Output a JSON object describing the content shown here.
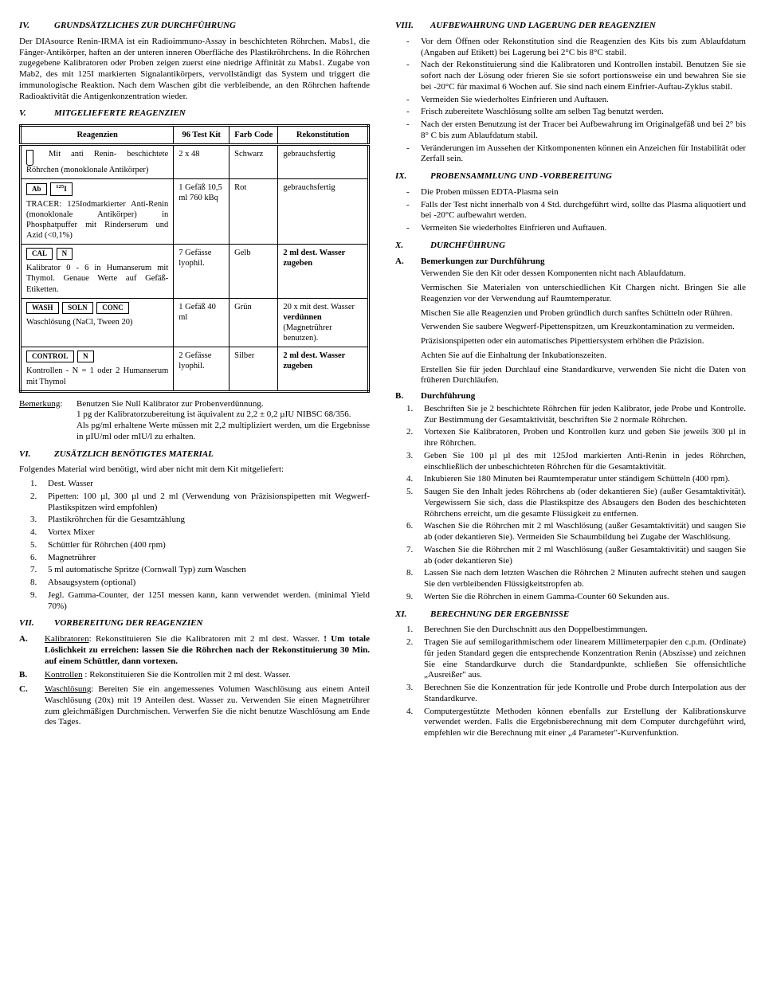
{
  "left": {
    "s4": {
      "num": "IV.",
      "title": "GRUNDSÄTZLICHES ZUR DURCHFÜHRUNG",
      "body": "Der DIAsource Renin-IRMA ist ein Radioimmuno-Assay in beschichteten Röhrchen. Mabs1, die Fänger-Antikörper, haften an der unteren inneren Oberfläche des Plastikröhrchens. In die Röhrchen zugegebene Kalibratoren oder Proben zeigen zuerst eine niedrige Affinität zu Mabs1. Zugabe von Mab2, des mit 125I markierten Signalantikörpers, vervollständigt das System und triggert die immunologische Reaktion. Nach dem Waschen gibt die verbleibende, an den Röhrchen haftende Radioaktivität die Antigenkonzentration wieder."
    },
    "s5": {
      "num": "V.",
      "title": "MITGELIEFERTE REAGENZIEN"
    },
    "table": {
      "h1": "Reagenzien",
      "h2": "96 Test Kit",
      "h3": "Farb Code",
      "h4": "Rekonstitution",
      "r1": {
        "desc": "Mit anti Renin- beschichtete Röhrchen (monoklonale Antikörper)",
        "kit": "2 x 48",
        "color": "Schwarz",
        "recon": "gebrauchsfertig"
      },
      "r2": {
        "tag1": "Ab",
        "tag2": "125I",
        "desc": "TRACER: 125Iodmarkierter Anti-Renin (monoklonale Antikörper) in Phosphatpuffer mit Rinderserum und Azid (<0,1%)",
        "kit": "1 Gefäß 10,5 ml 760 kBq",
        "color": "Rot",
        "recon": "gebrauchsfertig"
      },
      "r3": {
        "tag1": "CAL",
        "tag2": "N",
        "desc": "Kalibrator 0 - 6 in Humanserum mit Thymol. Genaue Werte auf Gefäß-Etiketten.",
        "kit": "7 Gefässe lyophil.",
        "color": "Gelb",
        "recon": "2 ml dest. Wasser zugeben"
      },
      "r4": {
        "tag1": "WASH",
        "tag2": "SOLN",
        "tag3": "CONC",
        "desc": "Waschlösung (NaCl, Tween 20)",
        "kit": "1 Gefäß 40 ml",
        "color": "Grün",
        "recon": "20 x mit dest. Wasser verdünnen (Magnetrührer benutzen)."
      },
      "r5": {
        "tag1": "CONTROL",
        "tag2": "N",
        "desc": "Kontrollen - N = 1 oder 2 Humanserum mit Thymol",
        "kit": "2 Gefässe lyophil.",
        "color": "Silber",
        "recon": "2 ml dest. Wasser zugeben"
      }
    },
    "remark": {
      "label": "Bemerkung",
      "p1": "Benutzen Sie Null Kalibrator zur Probenverdünnung.",
      "p2": "1 pg der Kalibratorzubereitung ist äquivalent zu 2,2 ± 0,2 µIU NIBSC 68/356.",
      "p3": "Als pg/ml erhaltene Werte müssen mit 2,2 multipliziert werden, um die Ergebnisse in µIU/ml oder mIU/l zu erhalten."
    },
    "s6": {
      "num": "VI.",
      "title": "ZUSÄTZLICH BENÖTIGTES MATERIAL",
      "intro": "Folgendes Material wird benötigt, wird aber nicht mit dem Kit mitgeliefert:",
      "items": [
        "Dest. Wasser",
        "Pipetten: 100 µl, 300 µl und 2 ml (Verwendung von Präzisionspipetten mit Wegwerf-Plastikspitzen wird empfohlen)",
        "Plastikröhrchen für die Gesamtzählung",
        "Vortex Mixer",
        "Schüttler für Röhrchen (400 rpm)",
        "Magnetrührer",
        "5 ml automatische Spritze (Cornwall Typ) zum Waschen",
        "Absaugsystem (optional)",
        "Jegl. Gamma-Counter, der 125I messen kann, kann verwendet werden. (minimal Yield 70%)"
      ]
    },
    "s7": {
      "num": "VII.",
      "title": "VORBEREITUNG DER REAGENZIEN",
      "a_label": "A.",
      "a_body": "Kalibratoren: Rekonstituieren Sie die Kalibratoren mit 2 ml dest. Wasser. ! Um totale Löslichkeit zu erreichen: lassen Sie die Röhrchen nach der Rekonstituierung 30 Min. auf einem Schüttler, dann vortexen.",
      "b_label": "B.",
      "b_body": "Kontrollen : Rekonstituieren Sie die Kontrollen mit 2 ml dest. Wasser.",
      "c_label": "C.",
      "c_body": "Waschlösung: Bereiten Sie ein angemessenes Volumen Waschlösung aus einem Anteil Waschlösung (20x) mit 19 Anteilen dest. Wasser zu. Verwenden Sie einen Magnetrührer zum gleichmäßigen Durchmischen. Verwerfen Sie die nicht benutze Waschlösung am Ende des Tages."
    }
  },
  "right": {
    "s8": {
      "num": "VIII.",
      "title": "AUFBEWAHRUNG UND LAGERUNG DER REAGENZIEN",
      "items": [
        "Vor dem Öffnen oder Rekonstitution sind die Reagenzien des Kits bis zum Ablaufdatum (Angaben auf Etikett) bei Lagerung bei 2°C bis 8°C stabil.",
        "Nach der Rekonstituierung sind die Kalibratoren und Kontrollen instabil. Benutzen Sie sie sofort nach der Lösung oder frieren Sie sie sofort portionsweise ein und bewahren Sie sie bei -20°C für maximal 6 Wochen auf. Sie sind nach einem Einfrier-Auftau-Zyklus stabil.",
        "Vermeiden Sie wiederholtes Einfrieren und Auftauen.",
        "Frisch zubereitete Waschlösung sollte am selben Tag benutzt werden.",
        "Nach der ersten Benutzung ist der Tracer bei Aufbewahrung im Originalgefäß und bei 2° bis 8° C bis zum Ablaufdatum stabil.",
        "Veränderungen im Aussehen der Kitkomponenten können ein Anzeichen für Instabilität oder Zerfall sein."
      ]
    },
    "s9": {
      "num": "IX.",
      "title": "PROBENSAMMLUNG UND -VORBEREITUNG",
      "items": [
        "Die Proben müssen EDTA-Plasma sein",
        "Falls der Test nicht innerhalb von 4 Std. durchgeführt wird, sollte das Plasma aliquotiert und bei -20°C aufbewahrt werden.",
        "Vermeiten Sie wiederholtes Einfrieren und Auftauen."
      ]
    },
    "s10": {
      "num": "X.",
      "title": "DURCHFÜHRUNG"
    },
    "s10a": {
      "label": "A.",
      "title": "Bemerkungen zur Durchführung",
      "p1": "Verwenden Sie den Kit oder dessen Komponenten nicht nach Ablaufdatum.",
      "p2": "Vermischen Sie Materialen von unterschiedlichen Kit Chargen nicht. Bringen Sie alle Reagenzien vor der Verwendung auf Raumtemperatur.",
      "p3": "Mischen Sie alle Reagenzien und Proben gründlich durch sanftes Schütteln oder Rühren.",
      "p4": "Verwenden Sie saubere Wegwerf-Pipettenspitzen, um Kreuzkontamination zu vermeiden.",
      "p5": "Präzisionspipetten oder ein automatisches Pipettiersystem erhöhen die Präzision.",
      "p6": "Achten Sie auf die Einhaltung der Inkubationszeiten.",
      "p7": "Erstellen Sie für jeden Durchlauf eine Standardkurve, verwenden Sie nicht die Daten von früheren Durchläufen."
    },
    "s10b": {
      "label": "B.",
      "title": "Durchführung",
      "items": [
        "Beschriften Sie je 2 beschichtete Röhrchen für jeden Kalibrator, jede Probe und Kontrolle. Zur Bestimmung der Gesamtaktivität, beschriften Sie 2 normale Röhrchen.",
        "Vortexen Sie Kalibratoren, Proben und Kontrollen kurz und geben Sie jeweils 300 µl in ihre Röhrchen.",
        "Geben Sie 100 µl µl des mit 125Jod markierten Anti-Renin in jedes Röhrchen, einschließlich der unbeschichteten Röhrchen für die Gesamtaktivität.",
        "Inkubieren Sie 180 Minuten bei Raumtemperatur unter ständigem Schütteln (400 rpm).",
        "Saugen Sie den Inhalt jedes Röhrchens ab (oder dekantieren Sie) (außer Gesamtaktivität). Vergewissern Sie sich, dass die Plastikspitze des Absaugers den Boden des beschichteten Röhrchens erreicht, um die gesamte Flüssigkeit zu entfernen.",
        "Waschen Sie die Röhrchen mit 2 ml Waschlösung (außer Gesamtaktivität) und saugen Sie ab (oder dekantieren Sie). Vermeiden Sie Schaumbildung bei Zugabe der Waschlösung.",
        "Waschen Sie die Röhrchen mit 2 ml Waschlösung (außer Gesamtaktivität) und saugen Sie ab (oder dekantieren Sie)",
        "Lassen Sie nach dem letzten Waschen die Röhrchen 2 Minuten aufrecht stehen und saugen Sie den verbleibenden Flüssigkeitstropfen ab.",
        "Werten Sie die Röhrchen in einem Gamma-Counter 60 Sekunden aus."
      ]
    },
    "s11": {
      "num": "XI.",
      "title": "BERECHNUNG DER ERGEBNISSE",
      "items": [
        "Berechnen Sie den Durchschnitt aus den Doppelbestimmungen.",
        "Tragen Sie auf semilogarithmischem oder linearem Millimeterpapier den c.p.m. (Ordinate) für jeden Standard gegen die entsprechende Konzentration Renin (Abszisse) und zeichnen Sie eine Standardkurve durch die Standardpunkte, schließen Sie offensichtliche „Ausreißer\" aus.",
        "Berechnen Sie die Konzentration für jede Kontrolle und Probe durch Interpolation aus der Standardkurve.",
        "Computergestützte Methoden können ebenfalls zur Erstellung der Kalibrationskurve verwendet werden. Falls die Ergebnisberechnung mit dem Computer durchgeführt wird, empfehlen wir die Berechnung mit einer „4 Parameter\"-Kurvenfunktion."
      ]
    }
  }
}
